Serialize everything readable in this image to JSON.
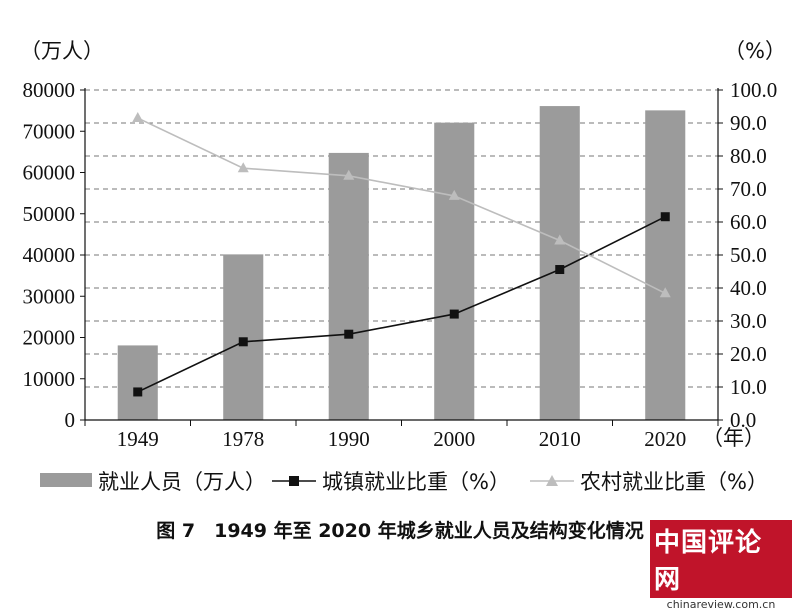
{
  "chart_data": {
    "type": "bar",
    "left_unit": "（万人）",
    "right_unit": "（%）",
    "x_unit": "（年）",
    "categories": [
      "1949",
      "1978",
      "1990",
      "2000",
      "2010",
      "2020"
    ],
    "ylim_left": [
      0,
      80000
    ],
    "yticks_left": [
      "0",
      "10000",
      "20000",
      "30000",
      "40000",
      "50000",
      "60000",
      "70000",
      "80000"
    ],
    "ylim_right": [
      0,
      100
    ],
    "yticks_right": [
      "0.0",
      "10.0",
      "20.0",
      "30.0",
      "40.0",
      "50.0",
      "60.0",
      "70.0",
      "80.0",
      "90.0",
      "100.0"
    ],
    "grid": true,
    "series": [
      {
        "name": "就业人员（万人）",
        "kind": "bar",
        "axis": "left",
        "color": "#9b9b9b",
        "values": [
          18082,
          40152,
          64749,
          72085,
          76105,
          75064
        ]
      },
      {
        "name": "城镇就业比重（%）",
        "kind": "line",
        "axis": "right",
        "color": "#111111",
        "marker": "square",
        "values": [
          8.5,
          23.7,
          26.0,
          32.1,
          45.6,
          61.6
        ]
      },
      {
        "name": "农村就业比重（%）",
        "kind": "line",
        "axis": "right",
        "color": "#bdbdbd",
        "marker": "triangle",
        "values": [
          91.5,
          76.3,
          74.0,
          67.9,
          54.4,
          38.4
        ]
      }
    ],
    "legend_position": "bottom",
    "title": "图 7　1949 年至 2020 年城乡就业人员及结构变化情况"
  },
  "watermark": {
    "logo_text": "中国评论网",
    "url": "chinareview.com.cn"
  }
}
